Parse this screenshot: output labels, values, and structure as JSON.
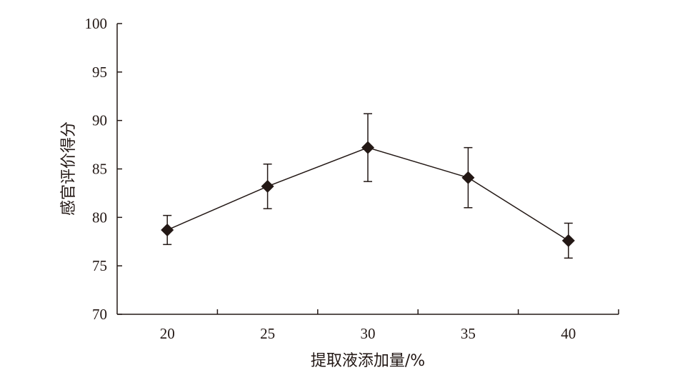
{
  "chart_data": {
    "type": "line",
    "xlabel": "提取液添加量/%",
    "ylabel": "感官评价得分",
    "x": [
      20,
      25,
      30,
      35,
      40
    ],
    "series": [
      {
        "values": [
          78.7,
          83.2,
          87.2,
          84.1,
          77.6
        ],
        "error_low": [
          77.2,
          80.9,
          83.7,
          81.0,
          75.8
        ],
        "error_high": [
          80.2,
          85.5,
          90.7,
          87.2,
          79.4
        ]
      }
    ],
    "ylim": [
      70,
      100
    ],
    "yticks": [
      70,
      75,
      80,
      85,
      90,
      95,
      100
    ],
    "xtick_labels": [
      "20",
      "25",
      "30",
      "35",
      "40"
    ],
    "marker": "diamond",
    "grid": false,
    "colors": {
      "line": "#231815",
      "marker": "#231815"
    }
  }
}
